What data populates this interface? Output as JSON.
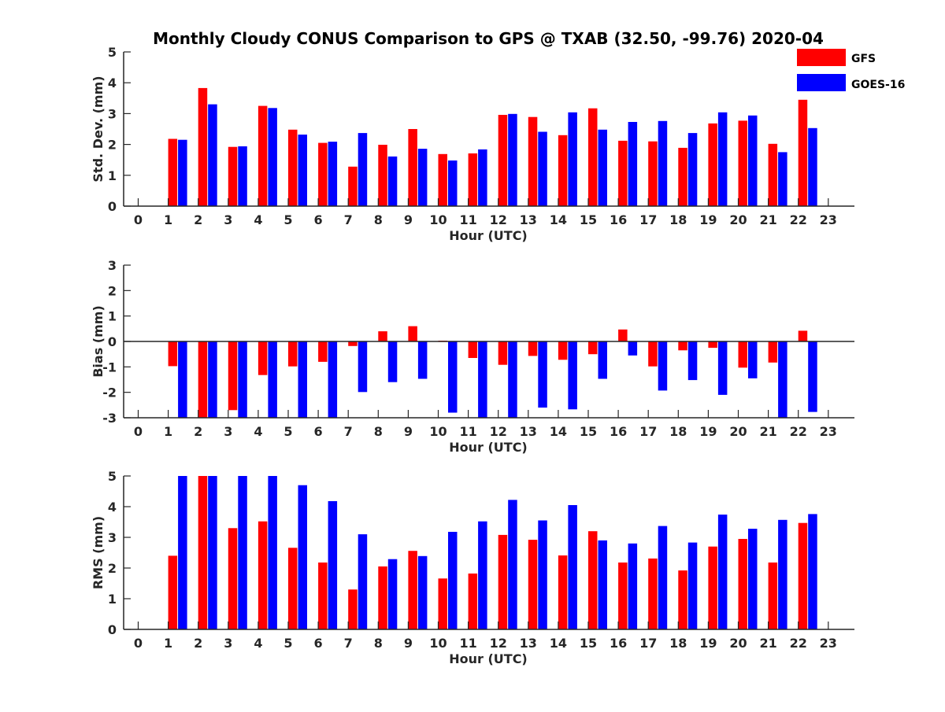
{
  "chart_data": {
    "type": "bar",
    "title": "Monthly Cloudy CONUS Comparison to GPS @ TXAB (32.50, -99.76) 2020-04",
    "legend": {
      "placement": "top-right",
      "entries": [
        "GFS",
        "GOES-16"
      ]
    },
    "colors": {
      "GFS": "#ff0000",
      "GOES-16": "#0000ff"
    },
    "categories": [
      "0",
      "1",
      "2",
      "3",
      "4",
      "5",
      "6",
      "7",
      "8",
      "9",
      "10",
      "11",
      "12",
      "13",
      "14",
      "15",
      "16",
      "17",
      "18",
      "19",
      "20",
      "21",
      "22",
      "23"
    ],
    "panels": [
      {
        "ylabel": "Std. Dev. (mm)",
        "xlabel": "Hour (UTC)",
        "ylim": [
          0,
          5
        ],
        "yticks": [
          0,
          1,
          2,
          3,
          4,
          5
        ],
        "zero_line": false,
        "series": [
          {
            "name": "GFS",
            "values": [
              null,
              2.18,
              3.83,
              1.92,
              3.25,
              2.48,
              2.05,
              1.28,
              1.99,
              2.5,
              1.69,
              1.71,
              2.96,
              2.89,
              2.3,
              3.17,
              2.12,
              2.1,
              1.89,
              2.68,
              2.77,
              2.02,
              3.45,
              null
            ]
          },
          {
            "name": "GOES-16",
            "values": [
              null,
              2.15,
              3.3,
              1.94,
              3.18,
              2.32,
              2.09,
              2.37,
              1.61,
              1.86,
              1.48,
              1.84,
              2.99,
              2.41,
              3.04,
              2.48,
              2.73,
              2.76,
              2.37,
              3.04,
              2.94,
              1.75,
              2.53,
              null
            ]
          }
        ]
      },
      {
        "ylabel": "Bias (mm)",
        "xlabel": "Hour (UTC)",
        "ylim": [
          -3,
          3
        ],
        "yticks": [
          -3,
          -2,
          -1,
          0,
          1,
          2,
          3
        ],
        "zero_line": true,
        "series": [
          {
            "name": "GFS",
            "values": [
              null,
              -0.97,
              -3.0,
              -2.7,
              -1.32,
              -0.98,
              -0.8,
              -0.18,
              0.4,
              0.6,
              0.03,
              -0.65,
              -0.92,
              -0.57,
              -0.72,
              -0.5,
              0.47,
              -0.98,
              -0.35,
              -0.25,
              -1.03,
              -0.83,
              0.42,
              null
            ]
          },
          {
            "name": "GOES-16",
            "values": [
              null,
              -3.0,
              -3.0,
              -3.0,
              -3.0,
              -3.0,
              -3.0,
              -1.99,
              -1.6,
              -1.47,
              -2.8,
              -3.0,
              -3.0,
              -2.6,
              -2.67,
              -1.47,
              -0.55,
              -1.93,
              -1.52,
              -2.1,
              -1.45,
              -3.0,
              -2.77,
              null
            ]
          }
        ]
      },
      {
        "ylabel": "RMS (mm)",
        "xlabel": "Hour (UTC)",
        "ylim": [
          0,
          5
        ],
        "yticks": [
          0,
          1,
          2,
          3,
          4,
          5
        ],
        "zero_line": false,
        "series": [
          {
            "name": "GFS",
            "values": [
              null,
              2.4,
              5.0,
              3.3,
              3.52,
              2.66,
              2.18,
              1.3,
              2.05,
              2.56,
              1.66,
              1.82,
              3.08,
              2.92,
              2.41,
              3.2,
              2.18,
              2.31,
              1.92,
              2.7,
              2.95,
              2.18,
              3.47,
              null
            ]
          },
          {
            "name": "GOES-16",
            "values": [
              null,
              5.0,
              5.0,
              5.0,
              5.0,
              4.7,
              4.18,
              3.1,
              2.29,
              2.39,
              3.18,
              3.52,
              4.22,
              3.55,
              4.05,
              2.9,
              2.8,
              3.37,
              2.83,
              3.74,
              3.28,
              3.57,
              3.76,
              null
            ]
          }
        ]
      }
    ]
  }
}
